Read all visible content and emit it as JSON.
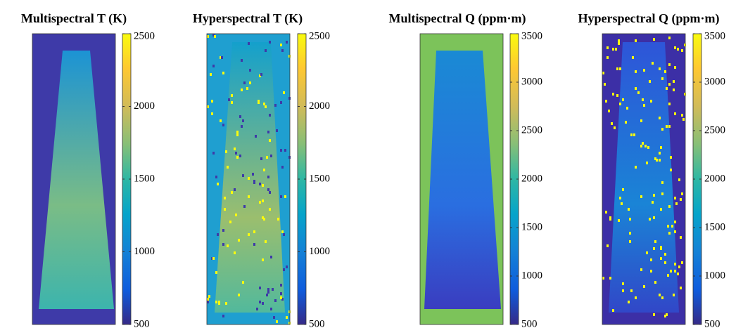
{
  "chart_data": [
    {
      "type": "heatmap",
      "title": "Multispectral T (K)",
      "clim": [
        500,
        2500
      ],
      "cticks": [
        500,
        1000,
        1500,
        2000,
        2500
      ]
    },
    {
      "type": "heatmap",
      "title": "Hyperspectral T (K)",
      "clim": [
        500,
        2500
      ],
      "cticks": [
        500,
        1000,
        1500,
        2000,
        2500
      ]
    },
    {
      "type": "heatmap",
      "title": "Multispectral Q (ppm·m)",
      "clim": [
        500,
        3500
      ],
      "cticks": [
        500,
        1000,
        1500,
        2000,
        2500,
        3000,
        3500
      ]
    },
    {
      "type": "heatmap",
      "title": "Hyperspectral Q (ppm·m)",
      "clim": [
        500,
        3500
      ],
      "cticks": [
        500,
        1000,
        1500,
        2000,
        2500,
        3000,
        3500
      ]
    }
  ]
}
